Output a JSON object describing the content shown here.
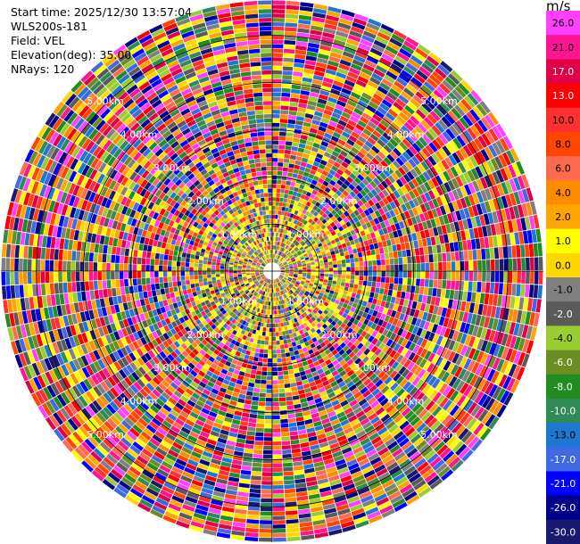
{
  "header": {
    "start_time": "Start time: 2025/12/30 13:57:04",
    "instrument": "WLS200s-181",
    "field": "Field: VEL",
    "elevation": "Elevation(deg): 35.00",
    "nrays": "NRays: 120"
  },
  "chart_data": {
    "type": "heatmap",
    "projection": "polar-ppi",
    "field": "VEL",
    "unit": "m/s",
    "elevation_deg": 35.0,
    "n_rays": 120,
    "range_rings_km": [
      1,
      2,
      3,
      4,
      5
    ],
    "ring_labels": [
      "1.00km",
      "2.00km",
      "3.00km",
      "4.00km",
      "5.00km"
    ],
    "max_range_km": 5.75,
    "range_gates": 62,
    "colorbar": {
      "unit_label": "m/s",
      "ticks": [
        "26.0",
        "21.0",
        "17.0",
        "13.0",
        "10.0",
        "8.0",
        "6.0",
        "4.0",
        "2.0",
        "1.0",
        "0.0",
        "-1.0",
        "-2.0",
        "-4.0",
        "-6.0",
        "-8.0",
        "-10.0",
        "-13.0",
        "-17.0",
        "-21.0",
        "-26.0",
        "-30.0"
      ],
      "colors": [
        "#ff40ff",
        "#ff1493",
        "#e0004a",
        "#ff0000",
        "#ff3030",
        "#ff4500",
        "#ff6a50",
        "#ff8c00",
        "#ffa500",
        "#ffff00",
        "#ffd700",
        "#808080",
        "#5a5a5a",
        "#9acd32",
        "#6b8e23",
        "#228b22",
        "#2e8b57",
        "#1e78d2",
        "#4169e1",
        "#0000ff",
        "#00008b",
        "#191970"
      ]
    }
  }
}
